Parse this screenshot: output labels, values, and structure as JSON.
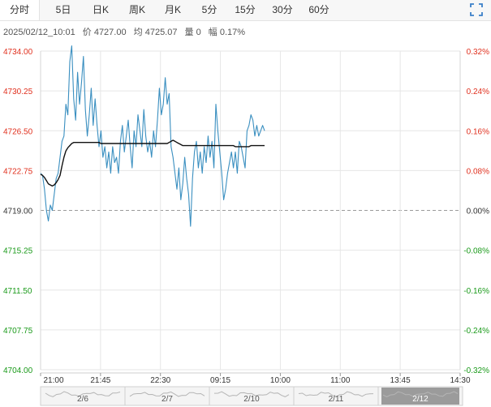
{
  "tabs": [
    {
      "label": "分时",
      "active": true
    },
    {
      "label": "5日",
      "active": false
    },
    {
      "label": "日K",
      "active": false
    },
    {
      "label": "周K",
      "active": false
    },
    {
      "label": "月K",
      "active": false
    },
    {
      "label": "5分",
      "active": false
    },
    {
      "label": "15分",
      "active": false
    },
    {
      "label": "30分",
      "active": false
    },
    {
      "label": "60分",
      "active": false
    }
  ],
  "info": {
    "datetime": "2025/02/12_10:01",
    "price": "价 4727.00",
    "avg": "均 4725.07",
    "volume": "量 0",
    "change": "幅 0.17%"
  },
  "colors": {
    "price_line": "#3a8fc0",
    "avg_line": "#111111",
    "up": "#e0301e",
    "down": "#1a9a1a",
    "neutral": "#333333",
    "grid": "#e6e6e6"
  },
  "chart_data": {
    "type": "line",
    "title": "",
    "xlabel": "",
    "ylabel": "",
    "prev_close": 4719.0,
    "ylim": [
      4704.0,
      4734.0
    ],
    "y_ticks": [
      "4734.00",
      "4730.25",
      "4726.50",
      "4722.75",
      "4719.00",
      "4715.25",
      "4711.50",
      "4707.75",
      "4704.00"
    ],
    "pct_ticks": [
      "0.32%",
      "0.24%",
      "0.16%",
      "0.08%",
      "0.00%",
      "-0.08%",
      "-0.16%",
      "-0.24%",
      "-0.32%"
    ],
    "x_ticks": [
      "21:00",
      "21:45",
      "22:30",
      "09:15",
      "10:00",
      "11:00",
      "13:45",
      "14:30"
    ],
    "grid": true,
    "series": [
      {
        "values": [
          4722.5,
          4722.3,
          4721.0,
          4719.0,
          4718.0,
          4719.5,
          4719.0,
          4720.5,
          4722.0,
          4722.5,
          4724.0,
          4725.5,
          4726.0,
          4729.0,
          4728.0,
          4733.0,
          4734.5,
          4729.5,
          4727.5,
          4732.0,
          4729.0,
          4731.0,
          4733.5,
          4728.5,
          4726.0,
          4728.0,
          4730.5,
          4727.0,
          4729.5,
          4727.0,
          4725.0,
          4726.5,
          4724.0,
          4725.0,
          4723.0,
          4724.5,
          4722.5,
          4725.0,
          4723.5,
          4724.0,
          4722.5,
          4725.5,
          4727.0,
          4724.5,
          4726.0,
          4727.5,
          4725.0,
          4723.0,
          4726.5,
          4725.0,
          4728.0,
          4726.5,
          4725.0,
          4728.5,
          4726.0,
          4724.5,
          4725.5,
          4724.0,
          4726.5,
          4725.0,
          4727.5,
          4730.5,
          4728.0,
          4729.0,
          4731.5,
          4729.0,
          4730.0,
          4725.0,
          4724.0,
          4722.5,
          4721.0,
          4723.0,
          4720.0,
          4721.5,
          4724.0,
          4722.0,
          4720.5,
          4717.5,
          4722.0,
          4724.5,
          4725.5,
          4723.0,
          4724.5,
          4722.5,
          4725.0,
          4723.5,
          4726.0,
          4724.0,
          4725.5,
          4723.0,
          4729.0,
          4726.5,
          4724.5,
          4722.5,
          4720.0,
          4721.0,
          4722.5,
          4723.5,
          4724.5,
          4723.0,
          4724.5,
          4722.5,
          4725.5,
          4725.0,
          4724.0,
          4723.0,
          4726.5,
          4727.0,
          4728.0,
          4727.5,
          4726.0,
          4727.0,
          4726.0,
          4726.5,
          4727.0,
          4726.5
        ]
      },
      {
        "values": [
          4722.4,
          4722.3,
          4722.1,
          4721.8,
          4721.5,
          4721.4,
          4721.3,
          4721.4,
          4721.6,
          4721.9,
          4722.3,
          4723.2,
          4724.0,
          4724.6,
          4724.9,
          4725.1,
          4725.3,
          4725.4,
          4725.4,
          4725.4,
          4725.4,
          4725.4,
          4725.4,
          4725.4,
          4725.4,
          4725.4,
          4725.4,
          4725.4,
          4725.4,
          4725.4,
          4725.4,
          4725.3,
          4725.3,
          4725.3,
          4725.3,
          4725.3,
          4725.3,
          4725.3,
          4725.3,
          4725.3,
          4725.3,
          4725.3,
          4725.3,
          4725.3,
          4725.3,
          4725.3,
          4725.3,
          4725.3,
          4725.3,
          4725.3,
          4725.3,
          4725.3,
          4725.3,
          4725.3,
          4725.3,
          4725.3,
          4725.3,
          4725.3,
          4725.3,
          4725.3,
          4725.3,
          4725.3,
          4725.3,
          4725.3,
          4725.3,
          4725.3,
          4725.4,
          4725.5,
          4725.6,
          4725.5,
          4725.4,
          4725.3,
          4725.2,
          4725.1,
          4725.1,
          4725.1,
          4725.1,
          4725.1,
          4725.1,
          4725.1,
          4725.1,
          4725.1,
          4725.1,
          4725.1,
          4725.1,
          4725.1,
          4725.1,
          4725.1,
          4725.1,
          4725.1,
          4725.1,
          4725.1,
          4725.1,
          4725.1,
          4725.1,
          4725.1,
          4725.1,
          4725.1,
          4725.1,
          4725.1,
          4725.0,
          4725.0,
          4725.0,
          4725.0,
          4725.0,
          4725.0,
          4725.0,
          4725.0,
          4725.1,
          4725.1,
          4725.1,
          4725.1,
          4725.1,
          4725.1,
          4725.1,
          4725.1
        ]
      }
    ]
  },
  "navigator": {
    "dates": [
      "2/6",
      "2/7",
      "2/10",
      "2/11",
      "2/12"
    ],
    "selected": "2/12"
  }
}
